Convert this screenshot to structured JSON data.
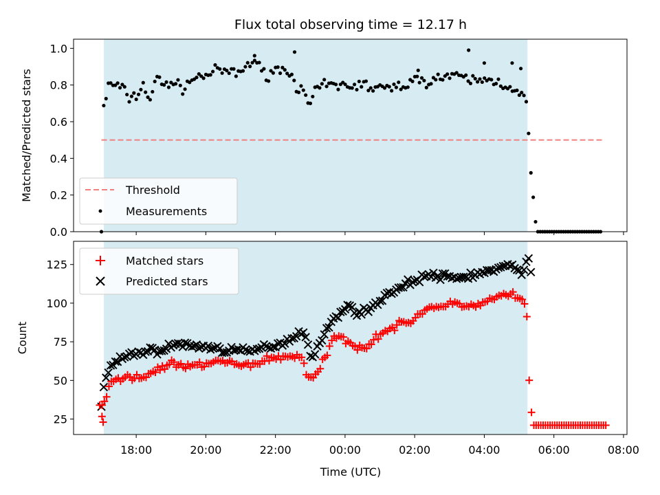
{
  "chart_data": {
    "title": "Flux total observing time = 12.17 h",
    "xlabel": "Time (UTC)",
    "x_range_hours": [
      16.2,
      32.1
    ],
    "x_ticks": [
      {
        "value": 18,
        "label": "18:00"
      },
      {
        "value": 20,
        "label": "20:00"
      },
      {
        "value": 22,
        "label": "22:00"
      },
      {
        "value": 24,
        "label": "00:00"
      },
      {
        "value": 26,
        "label": "02:00"
      },
      {
        "value": 28,
        "label": "04:00"
      },
      {
        "value": 30,
        "label": "06:00"
      },
      {
        "value": 32,
        "label": "08:00"
      }
    ],
    "observing_window_hours": [
      17.07,
      29.24
    ],
    "top": {
      "type": "scatter",
      "ylabel": "Matched/Predicted stars",
      "ylim": [
        0,
        1.05
      ],
      "y_ticks": [
        "0.0",
        "0.2",
        "0.4",
        "0.6",
        "0.8",
        "1.0"
      ],
      "threshold": {
        "name": "Threshold",
        "value": 0.5,
        "x_range_hours": [
          17.0,
          31.4
        ],
        "color": "#f08080"
      },
      "measurements_name": "Measurements",
      "legend_position": "lower-left",
      "knots": [
        [
          17.0,
          0.0
        ],
        [
          17.05,
          0.7
        ],
        [
          17.1,
          0.69
        ],
        [
          17.2,
          0.8
        ],
        [
          17.4,
          0.8
        ],
        [
          17.6,
          0.78
        ],
        [
          17.8,
          0.73
        ],
        [
          18.0,
          0.74
        ],
        [
          18.2,
          0.8
        ],
        [
          18.4,
          0.72
        ],
        [
          18.6,
          0.84
        ],
        [
          18.8,
          0.8
        ],
        [
          19.0,
          0.82
        ],
        [
          19.3,
          0.78
        ],
        [
          19.6,
          0.83
        ],
        [
          19.9,
          0.85
        ],
        [
          20.2,
          0.87
        ],
        [
          20.5,
          0.88
        ],
        [
          20.8,
          0.86
        ],
        [
          21.0,
          0.87
        ],
        [
          21.2,
          0.91
        ],
        [
          21.4,
          0.94
        ],
        [
          21.6,
          0.87
        ],
        [
          21.8,
          0.86
        ],
        [
          22.0,
          0.89
        ],
        [
          22.2,
          0.88
        ],
        [
          22.4,
          0.88
        ],
        [
          22.6,
          0.8
        ],
        [
          22.8,
          0.75
        ],
        [
          23.0,
          0.69
        ],
        [
          23.2,
          0.78
        ],
        [
          23.4,
          0.8
        ],
        [
          23.6,
          0.8
        ],
        [
          23.8,
          0.79
        ],
        [
          24.0,
          0.81
        ],
        [
          24.2,
          0.79
        ],
        [
          24.4,
          0.8
        ],
        [
          24.6,
          0.8
        ],
        [
          24.8,
          0.78
        ],
        [
          25.0,
          0.79
        ],
        [
          25.2,
          0.77
        ],
        [
          25.4,
          0.79
        ],
        [
          25.6,
          0.8
        ],
        [
          25.8,
          0.81
        ],
        [
          26.0,
          0.82
        ],
        [
          26.2,
          0.83
        ],
        [
          26.4,
          0.82
        ],
        [
          26.6,
          0.84
        ],
        [
          26.8,
          0.84
        ],
        [
          27.0,
          0.85
        ],
        [
          27.2,
          0.84
        ],
        [
          27.4,
          0.84
        ],
        [
          27.6,
          0.83
        ],
        [
          27.8,
          0.82
        ],
        [
          28.0,
          0.83
        ],
        [
          28.2,
          0.82
        ],
        [
          28.4,
          0.82
        ],
        [
          28.6,
          0.8
        ],
        [
          28.8,
          0.79
        ],
        [
          29.0,
          0.74
        ],
        [
          29.2,
          0.73
        ],
        [
          29.25,
          0.65
        ],
        [
          29.3,
          0.4
        ],
        [
          29.4,
          0.2
        ],
        [
          29.5,
          0.0
        ],
        [
          31.4,
          0.0
        ]
      ],
      "jitter": 0.045,
      "highlights": [
        [
          21.4,
          0.96
        ],
        [
          22.55,
          0.98
        ],
        [
          26.1,
          0.88
        ],
        [
          27.55,
          0.99
        ],
        [
          28.0,
          0.92
        ],
        [
          28.8,
          0.92
        ],
        [
          29.05,
          0.89
        ]
      ]
    },
    "bottom": {
      "type": "scatter",
      "ylabel": "Count",
      "ylim": [
        15,
        140
      ],
      "y_ticks": [
        "25",
        "50",
        "75",
        "100",
        "125"
      ],
      "legend_position": "upper-left",
      "series": [
        {
          "name": "Matched stars",
          "marker": "plus",
          "color": "#ff0000",
          "jitter": 3.5,
          "knots": [
            [
              16.95,
              34
            ],
            [
              17.0,
              23
            ],
            [
              17.05,
              34
            ],
            [
              17.2,
              45
            ],
            [
              17.4,
              50
            ],
            [
              17.8,
              52
            ],
            [
              18.2,
              52
            ],
            [
              18.6,
              57
            ],
            [
              19.0,
              61
            ],
            [
              19.4,
              58
            ],
            [
              19.8,
              60
            ],
            [
              20.2,
              62
            ],
            [
              20.6,
              62
            ],
            [
              21.0,
              59
            ],
            [
              21.4,
              61
            ],
            [
              21.8,
              64
            ],
            [
              22.2,
              65
            ],
            [
              22.6,
              66
            ],
            [
              22.8,
              65
            ],
            [
              22.9,
              52
            ],
            [
              23.1,
              51
            ],
            [
              23.3,
              58
            ],
            [
              23.5,
              69
            ],
            [
              23.7,
              78
            ],
            [
              24.0,
              77
            ],
            [
              24.3,
              72
            ],
            [
              24.6,
              72
            ],
            [
              24.9,
              78
            ],
            [
              25.2,
              83
            ],
            [
              25.6,
              86
            ],
            [
              26.0,
              90
            ],
            [
              26.4,
              98
            ],
            [
              26.8,
              97
            ],
            [
              27.2,
              100
            ],
            [
              27.6,
              98
            ],
            [
              28.0,
              100
            ],
            [
              28.4,
              104
            ],
            [
              28.8,
              106
            ],
            [
              29.0,
              102
            ],
            [
              29.15,
              100
            ],
            [
              29.25,
              88
            ],
            [
              29.3,
              40
            ],
            [
              29.4,
              21
            ],
            [
              31.5,
              21
            ]
          ]
        },
        {
          "name": "Predicted stars",
          "marker": "x",
          "color": "#000000",
          "jitter": 3.5,
          "knots": [
            [
              17.0,
              33
            ],
            [
              17.1,
              50
            ],
            [
              17.3,
              60
            ],
            [
              17.6,
              64
            ],
            [
              18.0,
              68
            ],
            [
              18.4,
              69
            ],
            [
              18.8,
              70
            ],
            [
              19.2,
              74
            ],
            [
              19.6,
              72
            ],
            [
              20.0,
              72
            ],
            [
              20.4,
              70
            ],
            [
              20.8,
              70
            ],
            [
              21.2,
              68
            ],
            [
              21.6,
              71
            ],
            [
              22.0,
              73
            ],
            [
              22.4,
              76
            ],
            [
              22.7,
              82
            ],
            [
              22.9,
              78
            ],
            [
              23.05,
              64
            ],
            [
              23.2,
              70
            ],
            [
              23.4,
              80
            ],
            [
              23.7,
              90
            ],
            [
              24.0,
              98
            ],
            [
              24.3,
              95
            ],
            [
              24.6,
              94
            ],
            [
              24.9,
              100
            ],
            [
              25.2,
              106
            ],
            [
              25.6,
              110
            ],
            [
              26.0,
              115
            ],
            [
              26.4,
              118
            ],
            [
              26.8,
              117
            ],
            [
              27.2,
              116
            ],
            [
              27.6,
              118
            ],
            [
              28.0,
              120
            ],
            [
              28.4,
              122
            ],
            [
              28.8,
              124
            ],
            [
              29.0,
              122
            ],
            [
              29.15,
              120
            ],
            [
              29.25,
              132
            ],
            [
              29.4,
              112
            ]
          ]
        }
      ]
    }
  }
}
